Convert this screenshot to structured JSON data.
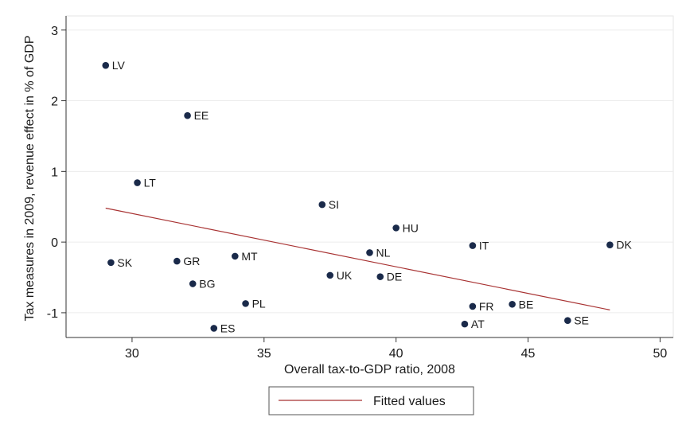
{
  "chart_data": {
    "type": "scatter",
    "xlabel": "Overall tax-to-GDP ratio, 2008",
    "ylabel": "Tax measures in 2009, revenue effect in % of GDP",
    "xlim": [
      27.5,
      50.5
    ],
    "ylim": [
      -1.35,
      3.2
    ],
    "x_ticks": [
      30,
      35,
      40,
      45,
      50
    ],
    "y_ticks": [
      -1,
      0,
      1,
      2,
      3
    ],
    "grid": "horizontal",
    "legend_position": "bottom-center",
    "points": [
      {
        "label": "LV",
        "x": 29.0,
        "y": 2.5
      },
      {
        "label": "EE",
        "x": 32.1,
        "y": 1.79
      },
      {
        "label": "LT",
        "x": 30.2,
        "y": 0.84
      },
      {
        "label": "SI",
        "x": 37.2,
        "y": 0.53
      },
      {
        "label": "HU",
        "x": 40.0,
        "y": 0.2
      },
      {
        "label": "IT",
        "x": 42.9,
        "y": -0.05
      },
      {
        "label": "DK",
        "x": 48.1,
        "y": -0.04
      },
      {
        "label": "NL",
        "x": 39.0,
        "y": -0.15
      },
      {
        "label": "SK",
        "x": 29.2,
        "y": -0.29
      },
      {
        "label": "GR",
        "x": 31.7,
        "y": -0.27
      },
      {
        "label": "MT",
        "x": 33.9,
        "y": -0.2
      },
      {
        "label": "BG",
        "x": 32.3,
        "y": -0.59
      },
      {
        "label": "UK",
        "x": 37.5,
        "y": -0.47
      },
      {
        "label": "DE",
        "x": 39.4,
        "y": -0.49
      },
      {
        "label": "PL",
        "x": 34.3,
        "y": -0.87
      },
      {
        "label": "ES",
        "x": 33.1,
        "y": -1.22
      },
      {
        "label": "FR",
        "x": 42.9,
        "y": -0.91
      },
      {
        "label": "BE",
        "x": 44.4,
        "y": -0.88
      },
      {
        "label": "AT",
        "x": 42.6,
        "y": -1.16
      },
      {
        "label": "SE",
        "x": 46.5,
        "y": -1.11
      }
    ],
    "fitted_line": {
      "name": "Fitted values",
      "x": [
        29.0,
        48.1
      ],
      "y": [
        0.48,
        -0.96
      ],
      "color": "#a83232"
    },
    "point_color": "#1a2a4a"
  }
}
